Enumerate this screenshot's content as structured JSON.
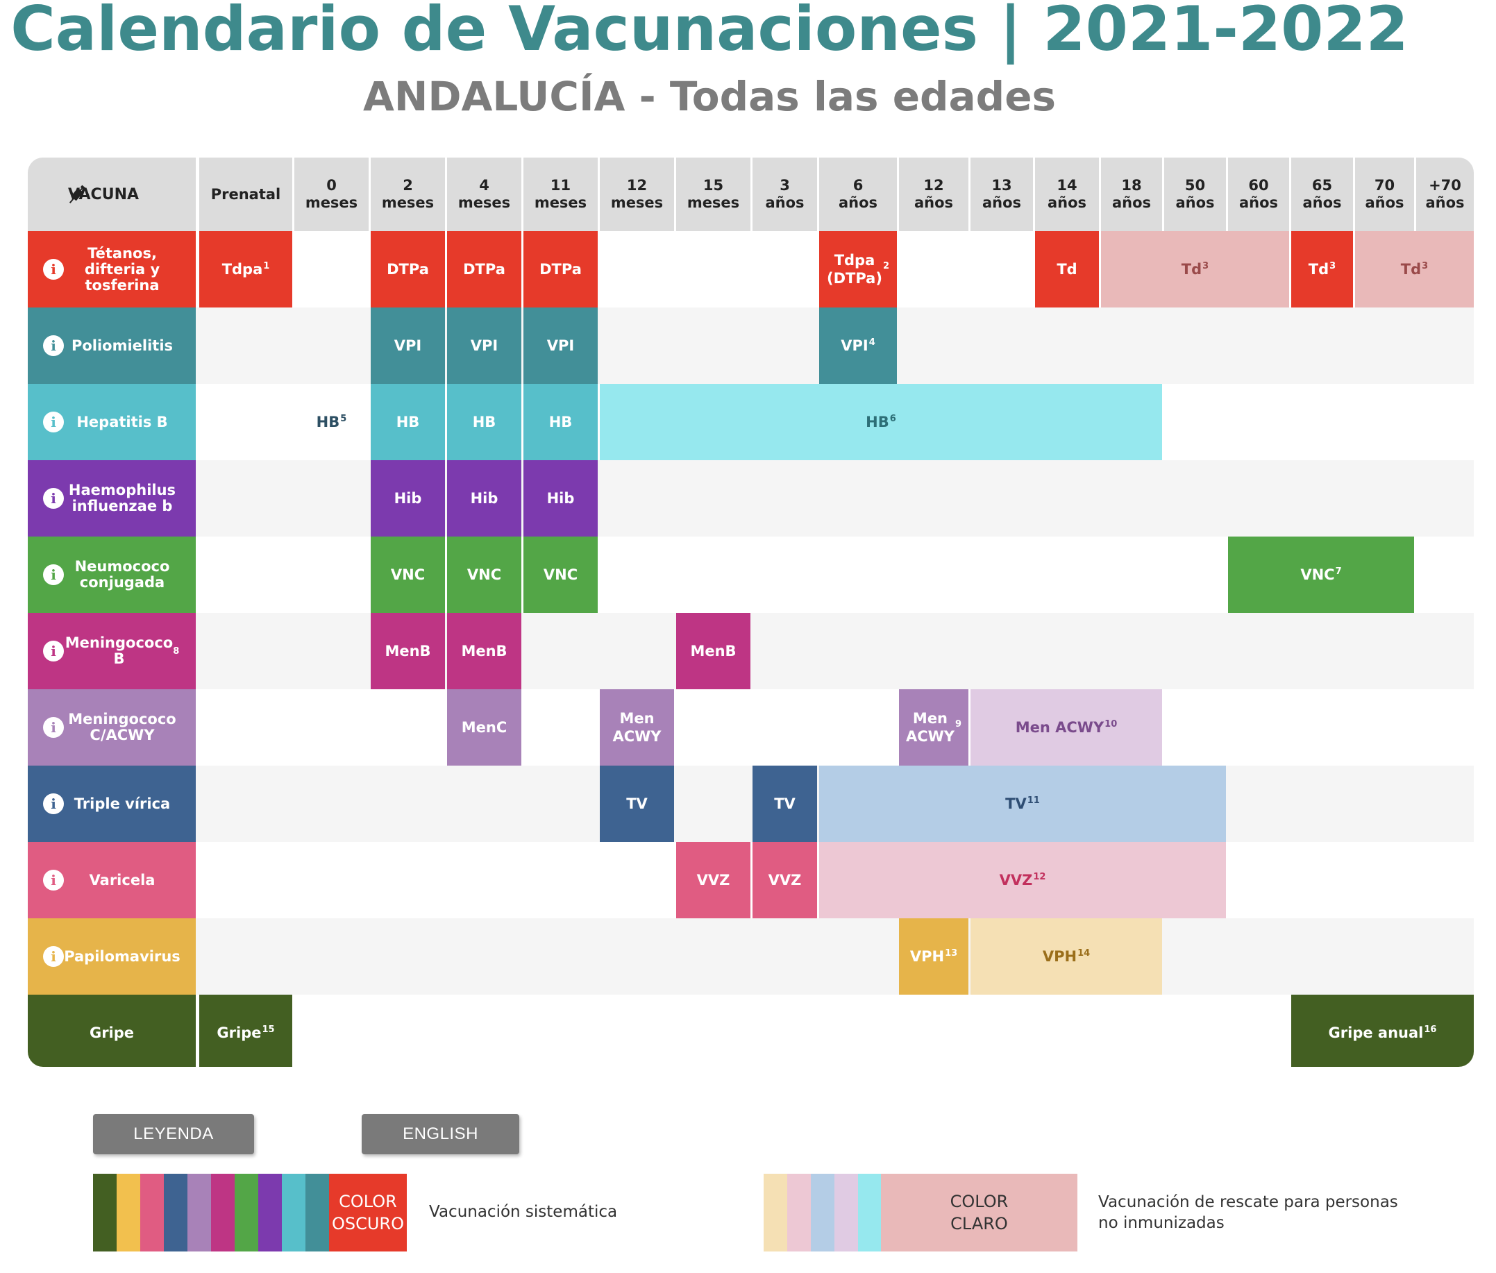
{
  "title": "Calendario de Vacunaciones | 2021-2022",
  "subtitle": "ANDALUCÍA - Todas las edades",
  "header": {
    "vaccine_label": "VACUNA",
    "syringe_icon": "syringe-icon"
  },
  "ages": [
    "Prenatal",
    "0\nmeses",
    "2\nmeses",
    "4\nmeses",
    "11\nmeses",
    "12\nmeses",
    "15\nmeses",
    "3\naños",
    "6\naños",
    "12\naños",
    "13\naños",
    "14\naños",
    "18\naños",
    "50\naños",
    "60\naños",
    "65\naños",
    "70\naños",
    "+70\naños"
  ],
  "rows": [
    {
      "name": "Tétanos,\ndifteria y\ntosferina",
      "color": "#e63a2a",
      "light": "#e9b9b9",
      "info": true,
      "info_color": "#e63a2a",
      "doses": [
        {
          "col": 0,
          "span": 1,
          "label": "Tdpa",
          "sup": "1",
          "tone": "dark"
        },
        {
          "col": 2,
          "span": 1,
          "label": "DTPa",
          "sup": "",
          "tone": "dark"
        },
        {
          "col": 3,
          "span": 1,
          "label": "DTPa",
          "sup": "",
          "tone": "dark"
        },
        {
          "col": 4,
          "span": 1,
          "label": "DTPa",
          "sup": "",
          "tone": "dark"
        },
        {
          "col": 8,
          "span": 1,
          "label": "Tdpa\n(DTPa)",
          "sup": "2",
          "tone": "dark"
        },
        {
          "col": 11,
          "span": 1,
          "label": "Td",
          "sup": "",
          "tone": "dark"
        },
        {
          "col": 12,
          "span": 3,
          "label": "Td",
          "sup": "3",
          "tone": "light"
        },
        {
          "col": 15,
          "span": 1,
          "label": "Td",
          "sup": "3",
          "tone": "dark"
        },
        {
          "col": 16,
          "span": 2,
          "label": "Td",
          "sup": "3",
          "tone": "light"
        }
      ]
    },
    {
      "name": "Poliomielitis",
      "color": "#428f98",
      "light": "#428f98",
      "info": true,
      "info_color": "#428f98",
      "doses": [
        {
          "col": 2,
          "span": 1,
          "label": "VPI",
          "sup": "",
          "tone": "dark"
        },
        {
          "col": 3,
          "span": 1,
          "label": "VPI",
          "sup": "",
          "tone": "dark"
        },
        {
          "col": 4,
          "span": 1,
          "label": "VPI",
          "sup": "",
          "tone": "dark"
        },
        {
          "col": 8,
          "span": 1,
          "label": "VPI",
          "sup": "4",
          "tone": "dark"
        }
      ]
    },
    {
      "name": "Hepatitis B",
      "color": "#57bfca",
      "light": "#96e8ee",
      "info": true,
      "info_color": "#57bfca",
      "doses": [
        {
          "col": 1,
          "span": 1,
          "label": "HB",
          "sup": "5",
          "tone": "text"
        },
        {
          "col": 2,
          "span": 1,
          "label": "HB",
          "sup": "",
          "tone": "dark"
        },
        {
          "col": 3,
          "span": 1,
          "label": "HB",
          "sup": "",
          "tone": "dark"
        },
        {
          "col": 4,
          "span": 1,
          "label": "HB",
          "sup": "",
          "tone": "dark"
        },
        {
          "col": 5,
          "span": 8,
          "label": "HB",
          "sup": "6",
          "tone": "light"
        }
      ]
    },
    {
      "name": "Haemophilus\ninfluenzae b",
      "color": "#7c3aae",
      "light": "#7c3aae",
      "info": true,
      "info_color": "#7c3aae",
      "doses": [
        {
          "col": 2,
          "span": 1,
          "label": "Hib",
          "sup": "",
          "tone": "dark"
        },
        {
          "col": 3,
          "span": 1,
          "label": "Hib",
          "sup": "",
          "tone": "dark"
        },
        {
          "col": 4,
          "span": 1,
          "label": "Hib",
          "sup": "",
          "tone": "dark"
        }
      ]
    },
    {
      "name": "Neumococo\nconjugada",
      "color": "#53a647",
      "light": "#53a647",
      "info": true,
      "info_color": "#53a647",
      "doses": [
        {
          "col": 2,
          "span": 1,
          "label": "VNC",
          "sup": "",
          "tone": "dark"
        },
        {
          "col": 3,
          "span": 1,
          "label": "VNC",
          "sup": "",
          "tone": "dark"
        },
        {
          "col": 4,
          "span": 1,
          "label": "VNC",
          "sup": "",
          "tone": "dark"
        },
        {
          "col": 14,
          "span": 3,
          "label": "VNC",
          "sup": "7",
          "tone": "dark"
        }
      ]
    },
    {
      "name": "Meningococo\nB",
      "name_sup": "8",
      "color": "#be3584",
      "light": "#be3584",
      "info": true,
      "info_color": "#be3584",
      "doses": [
        {
          "col": 2,
          "span": 1,
          "label": "MenB",
          "sup": "",
          "tone": "dark"
        },
        {
          "col": 3,
          "span": 1,
          "label": "MenB",
          "sup": "",
          "tone": "dark"
        },
        {
          "col": 6,
          "span": 1,
          "label": "MenB",
          "sup": "",
          "tone": "dark"
        }
      ]
    },
    {
      "name": "Meningococo\nC/ACWY",
      "color": "#a882b8",
      "light": "#e0cbe3",
      "info": true,
      "info_color": "#a882b8",
      "doses": [
        {
          "col": 3,
          "span": 1,
          "label": "MenC",
          "sup": "",
          "tone": "dark"
        },
        {
          "col": 5,
          "span": 1,
          "label": "Men\nACWY",
          "sup": "",
          "tone": "dark"
        },
        {
          "col": 9,
          "span": 1,
          "label": "Men\nACWY",
          "sup": "9",
          "tone": "dark"
        },
        {
          "col": 10,
          "span": 3,
          "label": "Men ACWY",
          "sup": "10",
          "tone": "light"
        }
      ]
    },
    {
      "name": "Triple vírica",
      "color": "#3e6391",
      "light": "#b4cde6",
      "info": true,
      "info_color": "#3e6391",
      "doses": [
        {
          "col": 5,
          "span": 1,
          "label": "TV",
          "sup": "",
          "tone": "dark"
        },
        {
          "col": 7,
          "span": 1,
          "label": "TV",
          "sup": "",
          "tone": "dark"
        },
        {
          "col": 8,
          "span": 6,
          "label": "TV",
          "sup": "11",
          "tone": "light"
        }
      ]
    },
    {
      "name": "Varicela",
      "color": "#e05c82",
      "light": "#edc8d4",
      "info": true,
      "info_color": "#e05c82",
      "doses": [
        {
          "col": 6,
          "span": 1,
          "label": "VVZ",
          "sup": "",
          "tone": "dark"
        },
        {
          "col": 7,
          "span": 1,
          "label": "VVZ",
          "sup": "",
          "tone": "dark"
        },
        {
          "col": 8,
          "span": 6,
          "label": "VVZ",
          "sup": "12",
          "tone": "light"
        }
      ]
    },
    {
      "name": "Papilomavirus",
      "color": "#e6b44a",
      "light": "#f5e0b4",
      "info": true,
      "info_color": "#e6b44a",
      "doses": [
        {
          "col": 9,
          "span": 1,
          "label": "VPH",
          "sup": "13",
          "tone": "dark"
        },
        {
          "col": 10,
          "span": 3,
          "label": "VPH",
          "sup": "14",
          "tone": "light"
        }
      ]
    },
    {
      "name": "Gripe",
      "color": "#435f22",
      "light": "#435f22",
      "info": false,
      "info_color": "#435f22",
      "doses": [
        {
          "col": 0,
          "span": 1,
          "label": "Gripe",
          "sup": "15",
          "tone": "dark"
        },
        {
          "col": 15,
          "span": 3,
          "label": "Gripe anual",
          "sup": "16",
          "tone": "dark"
        }
      ]
    }
  ],
  "buttons": {
    "legend": "LEYENDA",
    "english": "ENGLISH"
  },
  "legend": {
    "dark_swatches": [
      "#435f22",
      "#f2c04e",
      "#e05c82",
      "#3e6391",
      "#a882b8",
      "#be3584",
      "#53a647",
      "#7c3aae",
      "#57bfca",
      "#428f98"
    ],
    "dark_key": "COLOR\nOSCURO",
    "dark_key_color": "#e63a2a",
    "dark_text": "Vacunación sistemática",
    "light_swatches": [
      "#f5e0b4",
      "#edc8d4",
      "#b4cde6",
      "#e0cbe3",
      "#96e8ee"
    ],
    "light_key": "COLOR\nCLARO",
    "light_key_color": "#e9b9b9",
    "light_text": "Vacunación de rescate para personas\nno inmunizadas"
  }
}
